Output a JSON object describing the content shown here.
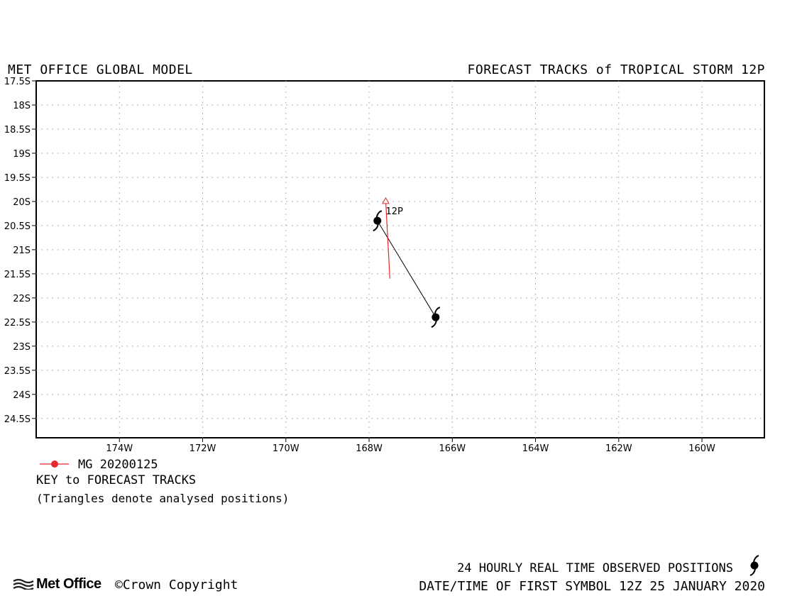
{
  "header": {
    "left": "MET OFFICE GLOBAL MODEL",
    "right": "FORECAST TRACKS of TROPICAL STORM 12P"
  },
  "map": {
    "lon_range": [
      -176,
      -158.5
    ],
    "lat_range": [
      -17.5,
      -24.9
    ],
    "lat_ticks": [
      {
        "value": -17.5,
        "label": "17.5S"
      },
      {
        "value": -18,
        "label": "18S"
      },
      {
        "value": -18.5,
        "label": "18.5S"
      },
      {
        "value": -19,
        "label": "19S"
      },
      {
        "value": -19.5,
        "label": "19.5S"
      },
      {
        "value": -20,
        "label": "20S"
      },
      {
        "value": -20.5,
        "label": "20.5S"
      },
      {
        "value": -21,
        "label": "21S"
      },
      {
        "value": -21.5,
        "label": "21.5S"
      },
      {
        "value": -22,
        "label": "22S"
      },
      {
        "value": -22.5,
        "label": "22.5S"
      },
      {
        "value": -23,
        "label": "23S"
      },
      {
        "value": -23.5,
        "label": "23.5S"
      },
      {
        "value": -24,
        "label": "24S"
      },
      {
        "value": -24.5,
        "label": "24.5S"
      }
    ],
    "lon_ticks": [
      {
        "value": -174,
        "label": "174W"
      },
      {
        "value": -172,
        "label": "172W"
      },
      {
        "value": -170,
        "label": "170W"
      },
      {
        "value": -168,
        "label": "168W"
      },
      {
        "value": -166,
        "label": "166W"
      },
      {
        "value": -164,
        "label": "164W"
      },
      {
        "value": -162,
        "label": "162W"
      },
      {
        "value": -160,
        "label": "160W"
      }
    ],
    "grid": true,
    "storm_label": "12P",
    "forecast_track": {
      "name": "MG 20200125",
      "color": "#e8282a",
      "points": [
        [
          -167.6,
          -20.0
        ],
        [
          -167.5,
          -21.6
        ]
      ]
    },
    "observed_track": {
      "color": "#000000",
      "points": [
        [
          -167.8,
          -20.4
        ],
        [
          -166.4,
          -22.4
        ]
      ]
    }
  },
  "key": {
    "model_label": "MG 20200125",
    "title": "KEY to FORECAST TRACKS",
    "note": "(Triangles denote analysed positions)"
  },
  "footer": {
    "observed_label": "24 HOURLY REAL TIME OBSERVED POSITIONS",
    "datetime_label": "DATE/TIME OF FIRST SYMBOL 12Z 25 JANUARY 2020",
    "logo_text": "Met Office",
    "copyright": "©Crown Copyright"
  },
  "icons": {
    "storm_symbol": "tropical-cyclone-symbol-icon",
    "forecast_marker": "red-dot-line-icon",
    "logo": "met-office-waves-icon"
  }
}
